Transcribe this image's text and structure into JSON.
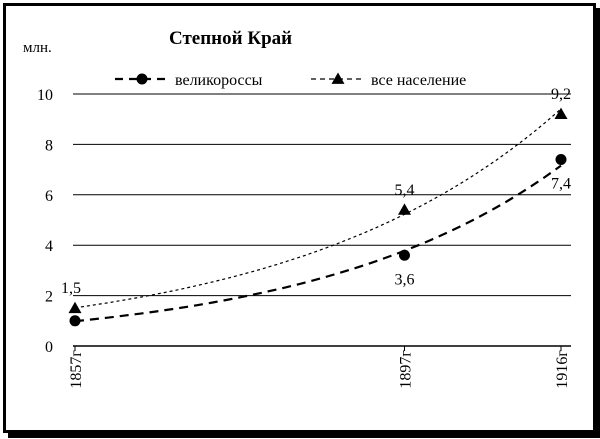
{
  "chart_data": {
    "type": "line",
    "title": "Степной Край",
    "ylabel": "млн.",
    "ylim": [
      0,
      10
    ],
    "yticks": [
      "0",
      "2",
      "4",
      "6",
      "8",
      "10"
    ],
    "x": [
      1857,
      1897,
      1916
    ],
    "x_tick_labels": [
      "1857г",
      "1897г",
      "1916г"
    ],
    "grid": true,
    "legend_position": "top",
    "series": [
      {
        "name": "великороссы",
        "marker": "circle",
        "values": [
          1.0,
          3.6,
          7.4
        ],
        "labels": [
          "",
          "3,6",
          "7,4"
        ],
        "trendline": "exponential"
      },
      {
        "name": "все население",
        "marker": "triangle",
        "values": [
          1.5,
          5.4,
          9.2
        ],
        "labels": [
          "1,5",
          "5,4",
          "9,2"
        ],
        "trendline": "exponential"
      }
    ]
  }
}
